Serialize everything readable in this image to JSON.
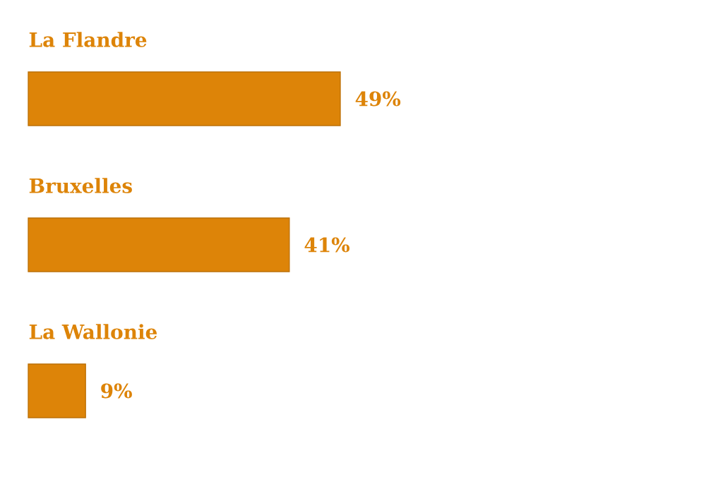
{
  "chart_data": {
    "type": "bar",
    "orientation": "horizontal",
    "categories": [
      "La Flandre",
      "Bruxelles",
      "La Wallonie"
    ],
    "values": [
      49,
      41,
      9
    ],
    "value_labels": [
      "49%",
      "41%",
      "9%"
    ],
    "color": "#dd8408"
  }
}
